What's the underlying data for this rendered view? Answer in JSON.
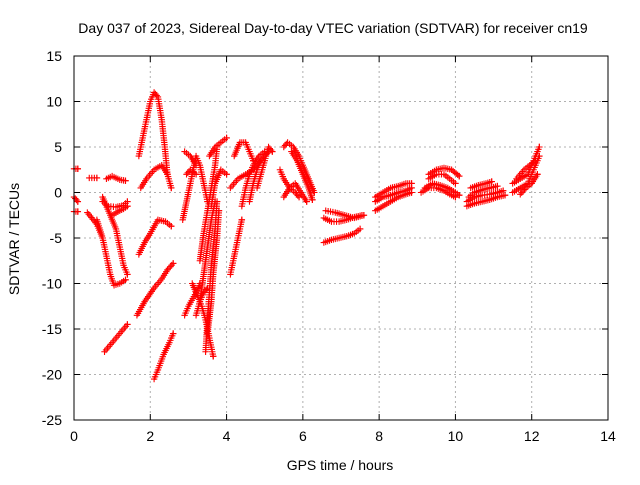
{
  "chart_data": {
    "type": "scatter",
    "title": "Day 037 of 2023, Sidereal Day-to-day VTEC variation (SDTVAR) for receiver cn19",
    "xlabel": "GPS time / hours",
    "ylabel": "SDTVAR / TECUs",
    "xlim": [
      0,
      14
    ],
    "ylim": [
      -25,
      15
    ],
    "xticks": [
      0,
      2,
      4,
      6,
      8,
      10,
      12,
      14
    ],
    "yticks": [
      -25,
      -20,
      -15,
      -10,
      -5,
      0,
      5,
      10,
      15
    ],
    "grid": true,
    "marker": "+",
    "color": "#ff0000",
    "tracks": [
      [
        [
          0.0,
          -0.5
        ],
        [
          0.1,
          -1.0
        ]
      ],
      [
        [
          0.0,
          2.6
        ],
        [
          0.1,
          2.6
        ]
      ],
      [
        [
          0.0,
          -2.1
        ],
        [
          0.1,
          -2.1
        ]
      ],
      [
        [
          0.4,
          1.6
        ],
        [
          0.6,
          1.6
        ]
      ],
      [
        [
          0.35,
          -2.2
        ],
        [
          0.6,
          -3.5
        ],
        [
          0.75,
          -5.0
        ]
      ],
      [
        [
          0.6,
          -3.0
        ],
        [
          0.75,
          -5.0
        ],
        [
          0.85,
          -7.0
        ],
        [
          0.95,
          -9.0
        ],
        [
          1.05,
          -10.2
        ],
        [
          1.2,
          -10.0
        ],
        [
          1.35,
          -9.6
        ]
      ],
      [
        [
          0.75,
          -1.0
        ],
        [
          0.9,
          -1.5
        ],
        [
          1.1,
          -1.6
        ],
        [
          1.3,
          -1.4
        ],
        [
          1.4,
          -1.0
        ]
      ],
      [
        [
          0.75,
          -0.5
        ],
        [
          0.95,
          -2.5
        ],
        [
          1.1,
          -4.0
        ],
        [
          1.2,
          -6.0
        ],
        [
          1.3,
          -8.0
        ],
        [
          1.4,
          -9.0
        ]
      ],
      [
        [
          0.8,
          -17.5
        ],
        [
          1.0,
          -16.5
        ],
        [
          1.2,
          -15.5
        ],
        [
          1.4,
          -14.5
        ]
      ],
      [
        [
          0.85,
          1.5
        ],
        [
          1.0,
          1.8
        ],
        [
          1.2,
          1.4
        ],
        [
          1.35,
          1.3
        ]
      ],
      [
        [
          1.0,
          -2.5
        ],
        [
          1.2,
          -2.0
        ],
        [
          1.3,
          -1.8
        ],
        [
          1.4,
          -1.5
        ]
      ],
      [
        [
          1.65,
          -13.5
        ],
        [
          1.85,
          -12.0
        ],
        [
          2.1,
          -10.5
        ],
        [
          2.3,
          -9.5
        ],
        [
          2.45,
          -8.5
        ],
        [
          2.6,
          -7.8
        ]
      ],
      [
        [
          1.7,
          -6.8
        ],
        [
          1.85,
          -5.5
        ],
        [
          2.0,
          -4.5
        ],
        [
          2.2,
          -3.0
        ],
        [
          2.4,
          -3.2
        ],
        [
          2.55,
          -3.7
        ]
      ],
      [
        [
          1.7,
          4.0
        ],
        [
          1.8,
          6.0
        ],
        [
          1.9,
          8.0
        ],
        [
          2.0,
          10.0
        ],
        [
          2.1,
          11.0
        ],
        [
          2.2,
          10.5
        ],
        [
          2.3,
          8.0
        ],
        [
          2.38,
          5.0
        ],
        [
          2.45,
          2.0
        ]
      ],
      [
        [
          1.75,
          0.5
        ],
        [
          1.9,
          1.5
        ],
        [
          2.1,
          2.5
        ],
        [
          2.3,
          3.0
        ],
        [
          2.45,
          2.0
        ],
        [
          2.55,
          0.5
        ]
      ],
      [
        [
          2.1,
          -20.5
        ],
        [
          2.2,
          -19.5
        ],
        [
          2.35,
          -17.8
        ],
        [
          2.5,
          -16.5
        ],
        [
          2.6,
          -15.5
        ]
      ],
      [
        [
          2.9,
          -13.5
        ],
        [
          3.0,
          -12.5
        ],
        [
          3.2,
          -11.0
        ],
        [
          3.3,
          -10.0
        ]
      ],
      [
        [
          2.85,
          -3.0
        ],
        [
          3.0,
          0.0
        ],
        [
          3.1,
          2.0
        ],
        [
          3.2,
          4.0
        ],
        [
          3.3,
          3.0
        ],
        [
          3.4,
          1.0
        ],
        [
          3.5,
          -1.0
        ]
      ],
      [
        [
          2.95,
          2.0
        ],
        [
          3.05,
          2.5
        ],
        [
          3.2,
          2.0
        ]
      ],
      [
        [
          2.9,
          4.5
        ],
        [
          3.05,
          4.0
        ],
        [
          3.2,
          3.0
        ]
      ],
      [
        [
          3.1,
          -10.0
        ],
        [
          3.25,
          -11.5
        ],
        [
          3.35,
          -12.5
        ],
        [
          3.45,
          -14.0
        ],
        [
          3.55,
          -16.0
        ],
        [
          3.65,
          -18.0
        ]
      ],
      [
        [
          3.2,
          -13.5
        ],
        [
          3.3,
          -12.0
        ],
        [
          3.4,
          -11.0
        ],
        [
          3.5,
          -10.5
        ]
      ],
      [
        [
          3.3,
          -7.5
        ],
        [
          3.4,
          -4.5
        ],
        [
          3.5,
          -2.0
        ],
        [
          3.6,
          0.5
        ],
        [
          3.7,
          3.0
        ],
        [
          3.75,
          5.0
        ]
      ],
      [
        [
          3.3,
          -12.0
        ],
        [
          3.4,
          -9.0
        ],
        [
          3.5,
          -6.0
        ],
        [
          3.6,
          -3.0
        ],
        [
          3.7,
          -1.0
        ]
      ],
      [
        [
          3.45,
          -17.5
        ],
        [
          3.5,
          -14.0
        ],
        [
          3.55,
          -11.0
        ],
        [
          3.6,
          -8.0
        ],
        [
          3.7,
          -4.0
        ],
        [
          3.75,
          -1.0
        ]
      ],
      [
        [
          3.5,
          -15.5
        ],
        [
          3.6,
          -12.0
        ],
        [
          3.65,
          -9.0
        ],
        [
          3.75,
          -5.0
        ],
        [
          3.8,
          -2.0
        ]
      ],
      [
        [
          3.55,
          4.0
        ],
        [
          3.7,
          5.0
        ],
        [
          3.85,
          5.5
        ],
        [
          4.0,
          6.0
        ]
      ],
      [
        [
          3.6,
          -1.5
        ],
        [
          3.7,
          1.0
        ],
        [
          3.85,
          2.5
        ],
        [
          4.0,
          2.0
        ]
      ],
      [
        [
          4.1,
          -9.0
        ],
        [
          4.2,
          -7.0
        ],
        [
          4.3,
          -5.0
        ],
        [
          4.4,
          -3.0
        ]
      ],
      [
        [
          4.1,
          0.5
        ],
        [
          4.3,
          1.5
        ],
        [
          4.5,
          2.0
        ],
        [
          4.7,
          2.5
        ],
        [
          4.8,
          3.0
        ],
        [
          4.9,
          3.5
        ]
      ],
      [
        [
          4.2,
          4.0
        ],
        [
          4.35,
          5.5
        ],
        [
          4.5,
          5.5
        ],
        [
          4.6,
          4.5
        ],
        [
          4.7,
          3.5
        ]
      ],
      [
        [
          4.4,
          -1.5
        ],
        [
          4.5,
          0.5
        ],
        [
          4.6,
          2.0
        ],
        [
          4.7,
          3.0
        ],
        [
          4.85,
          4.0
        ],
        [
          5.0,
          4.5
        ]
      ],
      [
        [
          4.6,
          -1.0
        ],
        [
          4.7,
          1.0
        ],
        [
          4.8,
          2.5
        ],
        [
          4.9,
          3.5
        ],
        [
          5.0,
          4.0
        ],
        [
          5.1,
          4.5
        ]
      ],
      [
        [
          4.8,
          0.5
        ],
        [
          4.9,
          2.0
        ],
        [
          5.0,
          3.5
        ],
        [
          5.1,
          5.0
        ],
        [
          5.2,
          4.5
        ]
      ],
      [
        [
          5.4,
          2.5
        ],
        [
          5.5,
          1.5
        ],
        [
          5.65,
          0.5
        ],
        [
          5.8,
          0.0
        ],
        [
          5.9,
          -0.5
        ]
      ],
      [
        [
          5.5,
          5.0
        ],
        [
          5.6,
          5.5
        ],
        [
          5.75,
          5.0
        ],
        [
          5.9,
          4.0
        ],
        [
          6.0,
          3.0
        ],
        [
          6.15,
          1.5
        ],
        [
          6.3,
          0.0
        ]
      ],
      [
        [
          5.5,
          -0.5
        ],
        [
          5.65,
          0.5
        ],
        [
          5.8,
          1.0
        ],
        [
          5.95,
          0.0
        ],
        [
          6.1,
          -1.0
        ]
      ],
      [
        [
          5.7,
          4.5
        ],
        [
          5.85,
          3.5
        ],
        [
          6.0,
          2.0
        ],
        [
          6.15,
          0.5
        ],
        [
          6.25,
          -0.8
        ]
      ],
      [
        [
          6.55,
          -2.8
        ],
        [
          6.75,
          -3.2
        ],
        [
          6.95,
          -3.2
        ],
        [
          7.15,
          -3.0
        ],
        [
          7.35,
          -2.7
        ],
        [
          7.55,
          -2.5
        ]
      ],
      [
        [
          6.55,
          -5.5
        ],
        [
          6.75,
          -5.2
        ],
        [
          6.95,
          -5.0
        ],
        [
          7.15,
          -4.8
        ],
        [
          7.35,
          -4.5
        ],
        [
          7.5,
          -4.0
        ]
      ],
      [
        [
          6.6,
          -2.0
        ],
        [
          6.85,
          -2.2
        ],
        [
          7.1,
          -2.5
        ],
        [
          7.35,
          -2.8
        ],
        [
          7.6,
          -2.5
        ]
      ],
      [
        [
          7.9,
          -2.0
        ],
        [
          8.1,
          -1.5
        ],
        [
          8.3,
          -1.0
        ],
        [
          8.5,
          -0.5
        ],
        [
          8.7,
          -0.2
        ],
        [
          8.85,
          0.0
        ]
      ],
      [
        [
          7.9,
          -1.0
        ],
        [
          8.1,
          -0.5
        ],
        [
          8.3,
          -0.3
        ],
        [
          8.5,
          0.0
        ],
        [
          8.7,
          0.2
        ],
        [
          8.85,
          0.5
        ]
      ],
      [
        [
          7.9,
          -0.5
        ],
        [
          8.1,
          0.0
        ],
        [
          8.3,
          0.5
        ],
        [
          8.5,
          0.7
        ],
        [
          8.7,
          1.0
        ],
        [
          8.85,
          1.0
        ]
      ],
      [
        [
          9.1,
          0.0
        ],
        [
          9.3,
          0.5
        ],
        [
          9.5,
          0.5
        ],
        [
          9.7,
          0.2
        ],
        [
          9.85,
          -0.2
        ],
        [
          10.0,
          -0.5
        ]
      ],
      [
        [
          9.2,
          0.5
        ],
        [
          9.4,
          1.0
        ],
        [
          9.6,
          0.8
        ],
        [
          9.8,
          0.5
        ],
        [
          10.0,
          0.0
        ],
        [
          10.1,
          -0.3
        ]
      ],
      [
        [
          9.3,
          2.0
        ],
        [
          9.5,
          2.5
        ],
        [
          9.7,
          2.7
        ],
        [
          9.9,
          2.5
        ],
        [
          10.1,
          1.8
        ]
      ],
      [
        [
          9.3,
          1.5
        ],
        [
          9.5,
          2.0
        ],
        [
          9.7,
          2.0
        ],
        [
          9.85,
          1.5
        ],
        [
          10.0,
          1.0
        ]
      ],
      [
        [
          10.3,
          -1.5
        ],
        [
          10.5,
          -1.2
        ],
        [
          10.7,
          -1.0
        ],
        [
          10.9,
          -0.8
        ],
        [
          11.1,
          -0.5
        ],
        [
          11.3,
          -0.3
        ]
      ],
      [
        [
          10.35,
          -0.5
        ],
        [
          10.5,
          0.0
        ],
        [
          10.7,
          0.3
        ],
        [
          10.9,
          0.5
        ],
        [
          11.1,
          0.7
        ]
      ],
      [
        [
          10.4,
          0.5
        ],
        [
          10.6,
          0.8
        ],
        [
          10.8,
          1.0
        ],
        [
          10.95,
          1.2
        ]
      ],
      [
        [
          10.3,
          -1.0
        ],
        [
          10.5,
          -0.5
        ],
        [
          10.7,
          -0.3
        ],
        [
          10.9,
          -0.2
        ],
        [
          11.1,
          0.0
        ],
        [
          11.25,
          0.2
        ]
      ],
      [
        [
          11.5,
          1.0
        ],
        [
          11.7,
          1.5
        ],
        [
          11.9,
          2.0
        ],
        [
          12.0,
          3.0
        ],
        [
          12.1,
          4.0
        ],
        [
          12.2,
          5.0
        ]
      ],
      [
        [
          11.5,
          0.0
        ],
        [
          11.7,
          0.5
        ],
        [
          11.9,
          1.0
        ],
        [
          12.0,
          2.0
        ],
        [
          12.1,
          3.0
        ],
        [
          12.2,
          4.0
        ]
      ],
      [
        [
          11.6,
          1.5
        ],
        [
          11.8,
          2.5
        ],
        [
          11.95,
          3.0
        ],
        [
          12.1,
          3.5
        ]
      ],
      [
        [
          11.7,
          -0.2
        ],
        [
          11.85,
          0.5
        ],
        [
          12.0,
          1.0
        ],
        [
          12.15,
          2.0
        ]
      ]
    ]
  }
}
